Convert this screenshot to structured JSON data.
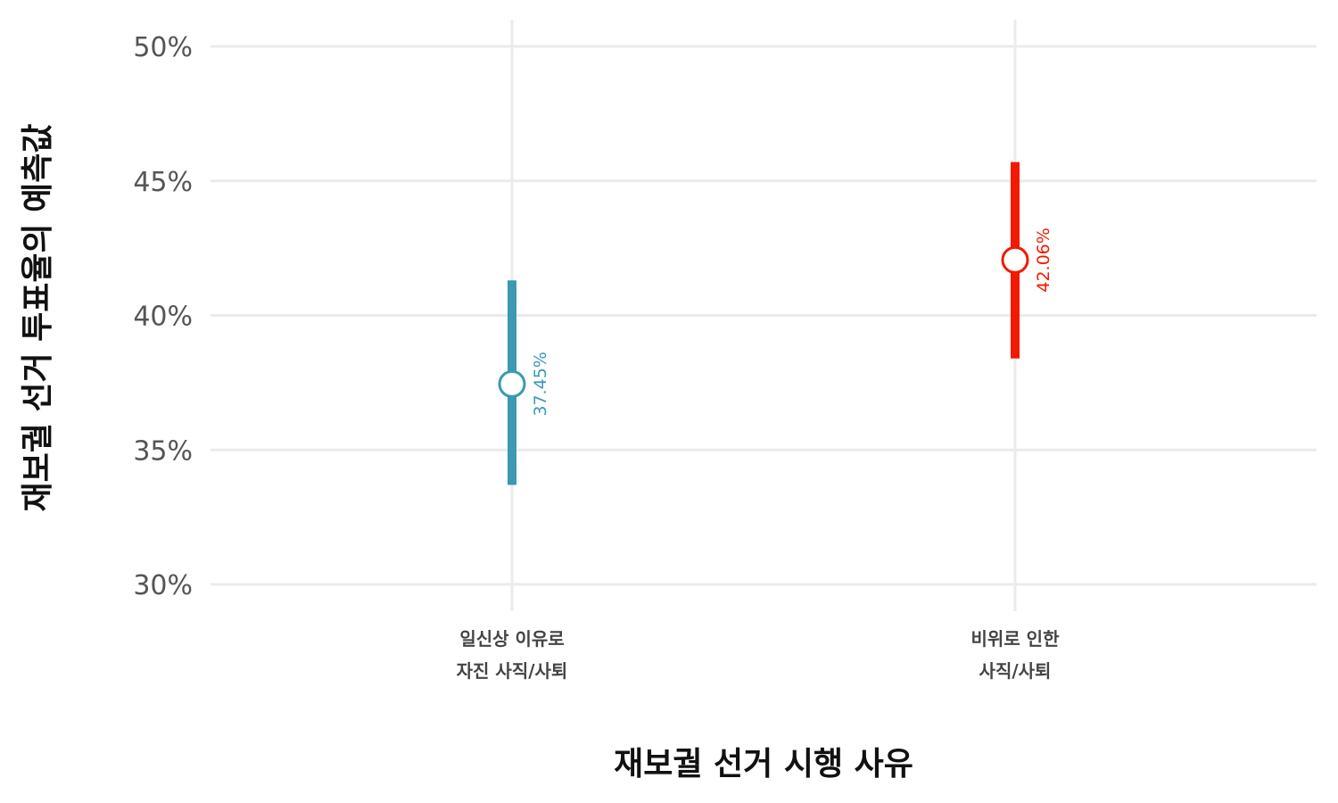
{
  "chart_data": {
    "type": "pointrange",
    "xlabel": "재보궐 선거 시행 사유",
    "ylabel": "재보궐 선거 투표율의 예측값",
    "ylim": [
      30,
      50
    ],
    "yticks": [
      30,
      35,
      40,
      45,
      50
    ],
    "ytick_labels": [
      "30%",
      "35%",
      "40%",
      "45%",
      "50%"
    ],
    "grid": true,
    "categories": [
      {
        "lines": [
          "일신상 이유로",
          "자진 사직/사퇴"
        ],
        "estimate": 37.45,
        "lower": 33.7,
        "upper": 41.3,
        "label": "37.45%",
        "color": "#3a9ab2"
      },
      {
        "lines": [
          "비위로 인한",
          "사직/사퇴"
        ],
        "estimate": 42.06,
        "lower": 38.4,
        "upper": 45.7,
        "label": "42.06%",
        "color": "#f21a00"
      }
    ]
  }
}
